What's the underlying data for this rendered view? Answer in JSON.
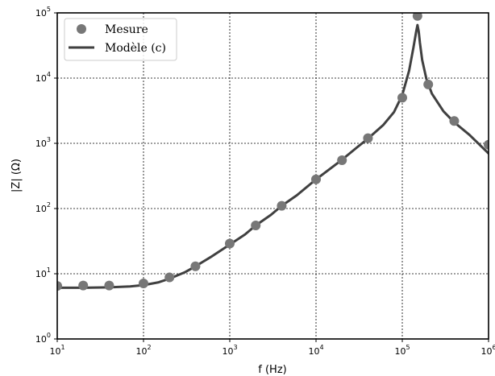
{
  "chart_data": {
    "type": "scatter",
    "title": "",
    "xlabel": "f (Hz)",
    "ylabel": "|Z| (Ω)",
    "xscale": "log",
    "yscale": "log",
    "xlim": [
      10,
      1000000
    ],
    "ylim": [
      1,
      100000
    ],
    "grid": true,
    "legend_position": "top-left",
    "x_ticks": [
      {
        "value": 10,
        "base": "10",
        "exp": "1"
      },
      {
        "value": 100,
        "base": "10",
        "exp": "2"
      },
      {
        "value": 1000,
        "base": "10",
        "exp": "3"
      },
      {
        "value": 10000,
        "base": "10",
        "exp": "4"
      },
      {
        "value": 100000,
        "base": "10",
        "exp": "5"
      },
      {
        "value": 1000000,
        "base": "10",
        "exp": "6"
      }
    ],
    "y_ticks": [
      {
        "value": 1,
        "base": "10",
        "exp": "0"
      },
      {
        "value": 10,
        "base": "10",
        "exp": "1"
      },
      {
        "value": 100,
        "base": "10",
        "exp": "2"
      },
      {
        "value": 1000,
        "base": "10",
        "exp": "3"
      },
      {
        "value": 10000,
        "base": "10",
        "exp": "4"
      },
      {
        "value": 100000,
        "base": "10",
        "exp": "5"
      }
    ],
    "series": [
      {
        "name": "Mesure",
        "kind": "scatter",
        "color": "#777777",
        "x": [
          10,
          20,
          40,
          100,
          200,
          400,
          1000,
          2000,
          4000,
          10000,
          20000,
          40000,
          100000,
          150000,
          200000,
          400000,
          1000000
        ],
        "y": [
          6.5,
          6.6,
          6.6,
          7.1,
          8.8,
          13,
          29,
          55,
          110,
          280,
          550,
          1200,
          5000,
          90000,
          8000,
          2200,
          950
        ]
      },
      {
        "name": "Modèle (c)",
        "kind": "line",
        "color": "#404040",
        "x": [
          10,
          20,
          40,
          70,
          100,
          150,
          200,
          300,
          400,
          600,
          1000,
          1500,
          2000,
          3000,
          4000,
          6000,
          10000,
          15000,
          20000,
          30000,
          40000,
          60000,
          80000,
          100000,
          120000,
          135000,
          145000,
          150000,
          155000,
          160000,
          170000,
          190000,
          220000,
          300000,
          400000,
          600000,
          1000000
        ],
        "y": [
          6.1,
          6.1,
          6.2,
          6.4,
          6.7,
          7.4,
          8.4,
          10.5,
          13,
          18,
          28,
          40,
          55,
          80,
          110,
          160,
          280,
          420,
          560,
          870,
          1180,
          1900,
          3000,
          5500,
          13000,
          30000,
          52000,
          65000,
          52000,
          35000,
          19000,
          9800,
          5800,
          3100,
          2100,
          1350,
          700
        ]
      }
    ]
  }
}
